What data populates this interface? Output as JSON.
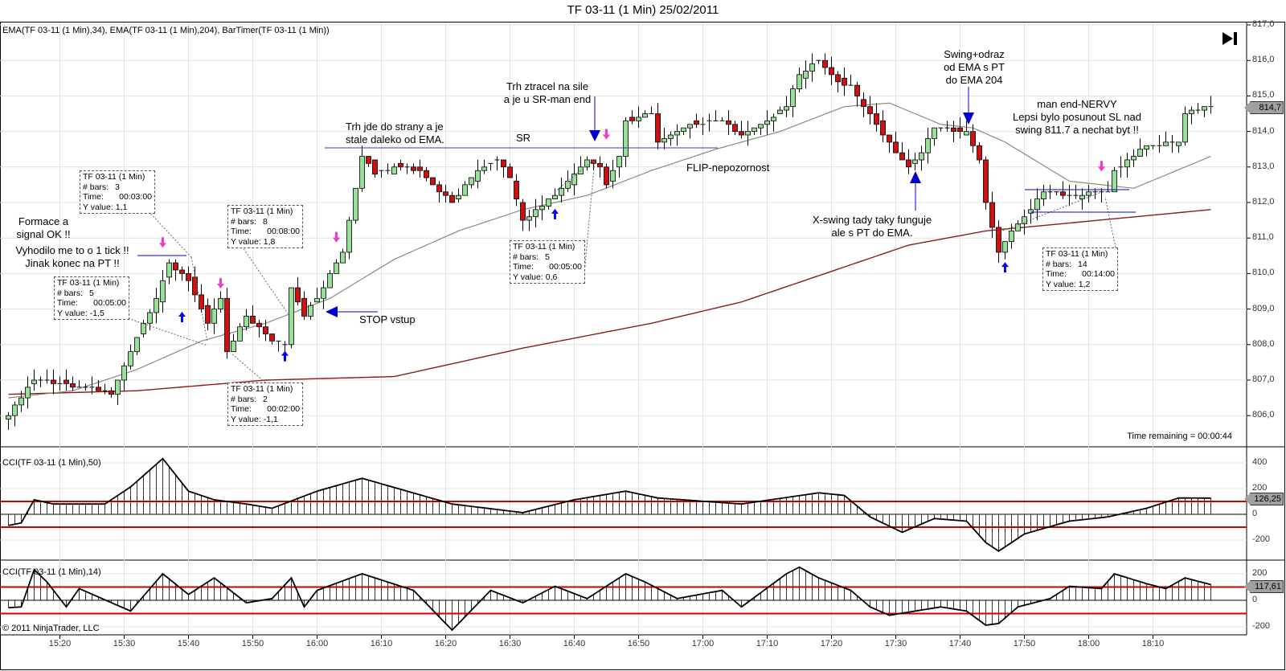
{
  "title": "TF 03-11 (1 Min)  25/02/2011",
  "indicator_label": "EMA(TF 03-11 (1 Min),34), EMA(TF 03-11 (1 Min),204), BarTimer(TF 03-11 (1 Min))",
  "cci50_label": "CCI(TF 03-11 (1 Min),50)",
  "cci14_label": "CCI(TF 03-11 (1 Min),14)",
  "copyright": "© 2011 NinjaTrader, LLC",
  "time_remaining": "Time remaining = 00:00:44",
  "price_axis": [
    "817,0",
    "816,0",
    "815,0",
    "814,0",
    "813,0",
    "812,0",
    "811,0",
    "810,0",
    "809,0",
    "808,0",
    "807,0",
    "806,0"
  ],
  "last_price": "814,7",
  "cci50_axis": [
    "400",
    "200",
    "0",
    "-200"
  ],
  "cci50_last": "126,25",
  "cci14_axis": [
    "200",
    "0",
    "-200"
  ],
  "cci14_last": "117,61",
  "time_axis": [
    "15:20",
    "15:30",
    "15:40",
    "15:50",
    "16:00",
    "16:10",
    "16:20",
    "16:30",
    "16:40",
    "16:50",
    "17:00",
    "17:10",
    "17:20",
    "17:30",
    "17:40",
    "17:50",
    "18:00",
    "18:10"
  ],
  "annotations": {
    "formace": "Formace a\nsignal OK !!",
    "vyhodilo": "Vyhodilo me to o 1 tick !!\nJinak konec na PT !!",
    "trh_strany": "Trh jde do strany a je\nstale daleko od EMA.",
    "sr": "SR",
    "trh_ztracel": "Trh ztracel na sile\na je u SR-man end",
    "flip": "FLIP-nepozornost",
    "stop": "STOP vstup",
    "swing": "Swing+odraz\nod EMA s PT\ndo EMA 204",
    "xswing": "X-swing tady taky funguje\nale s PT do EMA.",
    "nervy": "man end-NERVY\nLepsi bylo posunout SL nad\nswing 811.7 a nechat byt !!"
  },
  "info_box_labels": {
    "instrument": "TF 03-11 (1 Min)",
    "bars": "# bars:",
    "time": "Time:",
    "y": "Y value:"
  },
  "info_boxes": [
    {
      "bars": "3",
      "time": "00:03:00",
      "y": "1,1"
    },
    {
      "bars": "5",
      "time": "00:05:00",
      "y": "-1,5"
    },
    {
      "bars": "8",
      "time": "00:08:00",
      "y": "1,8"
    },
    {
      "bars": "2",
      "time": "00:02:00",
      "y": "-1,1"
    },
    {
      "bars": "5",
      "time": "00:05:00",
      "y": "0,6"
    },
    {
      "bars": "14",
      "time": "00:14:00",
      "y": "1,2"
    }
  ],
  "colors": {
    "up": "#98e098",
    "down": "#d01010",
    "ema34": "#8a8a78",
    "ema204": "#8b1a1a",
    "cci_level": "#cc0000",
    "annotation": "#0000cc",
    "marker_pink": "#ff33cc",
    "grid": "#e2e2e2"
  },
  "chart_data": {
    "type": "candlestick",
    "title": "TF 03-11 (1 Min)  25/02/2011",
    "first_bar_time": "15:12",
    "bar_interval_minutes": 1,
    "ylim": [
      805.8,
      817.1
    ],
    "close_anchors": [
      [
        0,
        806.0
      ],
      [
        4,
        807.0
      ],
      [
        8,
        806.9
      ],
      [
        12,
        806.8
      ],
      [
        16,
        806.6
      ],
      [
        19,
        807.8
      ],
      [
        23,
        809.3
      ],
      [
        25,
        810.3
      ],
      [
        28,
        809.8
      ],
      [
        31,
        808.6
      ],
      [
        33,
        809.3
      ],
      [
        34,
        807.8
      ],
      [
        37,
        808.8
      ],
      [
        41,
        808.1
      ],
      [
        43,
        808.0
      ],
      [
        44,
        809.6
      ],
      [
        46,
        808.8
      ],
      [
        48,
        809.3
      ],
      [
        52,
        810.6
      ],
      [
        55,
        813.3
      ],
      [
        57,
        812.8
      ],
      [
        60,
        813.0
      ],
      [
        64,
        812.9
      ],
      [
        67,
        812.3
      ],
      [
        69,
        812.0
      ],
      [
        73,
        812.9
      ],
      [
        76,
        813.2
      ],
      [
        78,
        812.7
      ],
      [
        80,
        811.5
      ],
      [
        83,
        811.9
      ],
      [
        86,
        812.4
      ],
      [
        90,
        813.2
      ],
      [
        92,
        813.0
      ],
      [
        93,
        812.5
      ],
      [
        95,
        813.3
      ],
      [
        96,
        814.3
      ],
      [
        100,
        814.5
      ],
      [
        101,
        813.7
      ],
      [
        106,
        814.2
      ],
      [
        111,
        814.3
      ],
      [
        114,
        813.9
      ],
      [
        118,
        814.3
      ],
      [
        121,
        814.7
      ],
      [
        123,
        815.6
      ],
      [
        126,
        816.0
      ],
      [
        129,
        815.4
      ],
      [
        131,
        815.3
      ],
      [
        133,
        814.7
      ],
      [
        135,
        814.2
      ],
      [
        138,
        813.4
      ],
      [
        140,
        813.0
      ],
      [
        142,
        813.4
      ],
      [
        144,
        814.1
      ],
      [
        149,
        814.0
      ],
      [
        151,
        813.2
      ],
      [
        152,
        812.0
      ],
      [
        154,
        810.6
      ],
      [
        156,
        811.2
      ],
      [
        159,
        811.8
      ],
      [
        161,
        812.3
      ],
      [
        165,
        812.2
      ],
      [
        171,
        812.3
      ],
      [
        172,
        812.9
      ],
      [
        177,
        813.6
      ],
      [
        182,
        813.7
      ],
      [
        183,
        814.5
      ],
      [
        187,
        814.7
      ]
    ],
    "ema34_anchors": [
      [
        0,
        806.5
      ],
      [
        10,
        806.7
      ],
      [
        20,
        807.3
      ],
      [
        30,
        808.1
      ],
      [
        40,
        808.6
      ],
      [
        50,
        809.3
      ],
      [
        60,
        810.4
      ],
      [
        70,
        811.2
      ],
      [
        80,
        811.8
      ],
      [
        90,
        812.2
      ],
      [
        100,
        812.9
      ],
      [
        110,
        813.5
      ],
      [
        120,
        814.0
      ],
      [
        130,
        814.7
      ],
      [
        137,
        814.8
      ],
      [
        145,
        814.2
      ],
      [
        150,
        814.1
      ],
      [
        155,
        813.7
      ],
      [
        165,
        812.6
      ],
      [
        175,
        812.4
      ],
      [
        187,
        813.3
      ]
    ],
    "ema204_anchors": [
      [
        0,
        806.6
      ],
      [
        20,
        806.7
      ],
      [
        40,
        807.0
      ],
      [
        60,
        807.1
      ],
      [
        80,
        807.9
      ],
      [
        100,
        808.6
      ],
      [
        114,
        809.2
      ],
      [
        140,
        810.8
      ],
      [
        152,
        811.2
      ],
      [
        187,
        811.8
      ]
    ],
    "cci50_anchors": [
      [
        0,
        -87
      ],
      [
        2,
        -67
      ],
      [
        4,
        113
      ],
      [
        7,
        80
      ],
      [
        15,
        80
      ],
      [
        19,
        213
      ],
      [
        24,
        433
      ],
      [
        28,
        180
      ],
      [
        32,
        113
      ],
      [
        37,
        80
      ],
      [
        41,
        47
      ],
      [
        48,
        180
      ],
      [
        55,
        280
      ],
      [
        62,
        180
      ],
      [
        69,
        80
      ],
      [
        80,
        13
      ],
      [
        88,
        113
      ],
      [
        96,
        180
      ],
      [
        101,
        127
      ],
      [
        114,
        80
      ],
      [
        126,
        167
      ],
      [
        130,
        147
      ],
      [
        134,
        -20
      ],
      [
        139,
        -140
      ],
      [
        144,
        -33
      ],
      [
        149,
        -53
      ],
      [
        152,
        -220
      ],
      [
        154,
        -287
      ],
      [
        158,
        -153
      ],
      [
        165,
        -53
      ],
      [
        171,
        -20
      ],
      [
        177,
        47
      ],
      [
        182,
        127
      ],
      [
        187,
        126
      ]
    ],
    "cci14_anchors": [
      [
        0,
        -56
      ],
      [
        2,
        -50
      ],
      [
        4,
        231
      ],
      [
        6,
        138
      ],
      [
        9,
        -50
      ],
      [
        11,
        88
      ],
      [
        19,
        -81
      ],
      [
        24,
        200
      ],
      [
        28,
        44
      ],
      [
        32,
        169
      ],
      [
        37,
        -19
      ],
      [
        41,
        13
      ],
      [
        44,
        169
      ],
      [
        46,
        -50
      ],
      [
        48,
        75
      ],
      [
        55,
        200
      ],
      [
        63,
        75
      ],
      [
        69,
        -225
      ],
      [
        75,
        75
      ],
      [
        80,
        -19
      ],
      [
        85,
        106
      ],
      [
        90,
        13
      ],
      [
        96,
        200
      ],
      [
        99,
        138
      ],
      [
        104,
        13
      ],
      [
        111,
        75
      ],
      [
        114,
        -50
      ],
      [
        121,
        200
      ],
      [
        123,
        250
      ],
      [
        126,
        169
      ],
      [
        131,
        75
      ],
      [
        134,
        -50
      ],
      [
        137,
        -113
      ],
      [
        145,
        -50
      ],
      [
        149,
        -81
      ],
      [
        152,
        -188
      ],
      [
        154,
        -175
      ],
      [
        157,
        -50
      ],
      [
        162,
        13
      ],
      [
        165,
        106
      ],
      [
        170,
        88
      ],
      [
        172,
        200
      ],
      [
        177,
        125
      ],
      [
        180,
        88
      ],
      [
        183,
        169
      ],
      [
        187,
        118
      ]
    ],
    "cci_levels": [
      100,
      -100
    ],
    "sr_level": 813.6,
    "range_levels": [
      812.4,
      811.75
    ],
    "markers": [
      {
        "bar": 24,
        "price": 810.75,
        "type": "pink-down"
      },
      {
        "bar": 33,
        "price": 809.6,
        "type": "pink-down"
      },
      {
        "bar": 51,
        "price": 810.9,
        "type": "pink-down"
      },
      {
        "bar": 93,
        "price": 813.8,
        "type": "pink-down"
      },
      {
        "bar": 170,
        "price": 812.9,
        "type": "pink-down"
      },
      {
        "bar": 27,
        "price": 808.9,
        "type": "blue-up"
      },
      {
        "bar": 34,
        "price": 808.4,
        "type": "blue-up"
      },
      {
        "bar": 43,
        "price": 807.8,
        "type": "blue-up"
      },
      {
        "bar": 85,
        "price": 811.8,
        "type": "blue-up"
      },
      {
        "bar": 155,
        "price": 810.3,
        "type": "blue-up"
      }
    ]
  }
}
